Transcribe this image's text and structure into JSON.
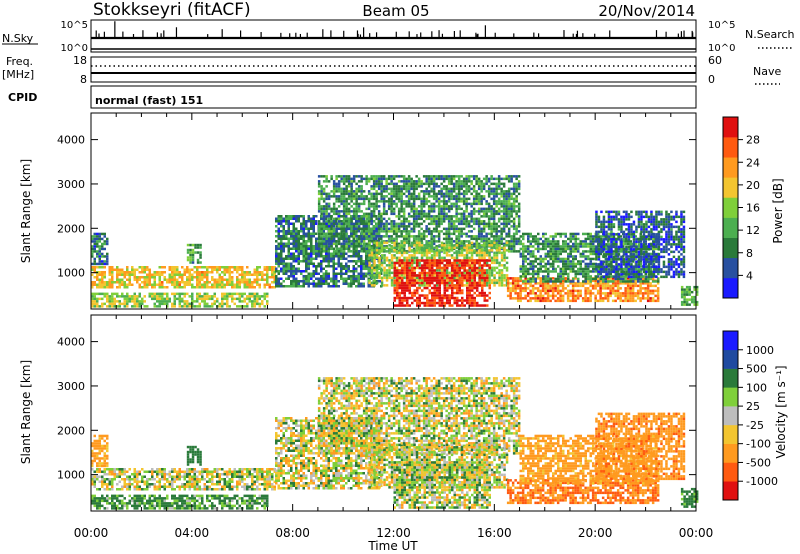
{
  "header": {
    "station": "Stokkseyri (fitACF)",
    "beam": "Beam 05",
    "date": "20/Nov/2014"
  },
  "aux_panels": {
    "nsky_label": "N.Sky",
    "nsky_ticks": [
      "10^5",
      "10^0"
    ],
    "nsearch_label": "N.Search",
    "nsearch_ticks": [
      "10^5",
      "10^0"
    ],
    "freq_label": "Freq.",
    "freq_unit": "[MHz]",
    "freq_ticks": [
      "18",
      "8"
    ],
    "nave_label": "Nave",
    "nave_ticks": [
      "60",
      "0"
    ],
    "cpid_label": "CPID",
    "cpid_value": "normal (fast) 151"
  },
  "colors": {
    "power": [
      "#1a1aff",
      "#2850a0",
      "#2a7a3a",
      "#4caf50",
      "#7fcf3a",
      "#f3c530",
      "#ff9a1f",
      "#ff5a10",
      "#e01010"
    ],
    "velocity": [
      "#e01010",
      "#ff5a10",
      "#ff9a1f",
      "#f3c530",
      "#bdbdbd",
      "#7fcf3a",
      "#2a7a3a",
      "#1f4aa0",
      "#1a1aff"
    ]
  },
  "chart_data": [
    {
      "type": "heatmap",
      "quantity": "power",
      "ylabel": "Slant Range [km]",
      "xlabel": "",
      "x_range_hours": [
        0,
        24
      ],
      "ylim": [
        180,
        4600
      ],
      "yticks": [
        "1000",
        "2000",
        "3000",
        "4000"
      ],
      "colorbar_label": "Power [dB]",
      "colorbar_ticks": [
        "28",
        "24",
        "20",
        "16",
        "12",
        "8",
        "4"
      ],
      "colorbar_range": [
        0,
        32
      ],
      "regions": [
        {
          "t0": 0.0,
          "t1": 7.3,
          "r0": 650,
          "r1": 1150,
          "level": 20
        },
        {
          "t0": 0.0,
          "t1": 7.0,
          "r0": 250,
          "r1": 550,
          "level": 16
        },
        {
          "t0": 3.8,
          "t1": 4.3,
          "r0": 1200,
          "r1": 1650,
          "level": 12
        },
        {
          "t0": 0.0,
          "t1": 0.6,
          "r0": 1200,
          "r1": 1900,
          "level": 8
        },
        {
          "t0": 7.3,
          "t1": 11.5,
          "r0": 700,
          "r1": 2300,
          "level": 8
        },
        {
          "t0": 9.0,
          "t1": 17.0,
          "r0": 1500,
          "r1": 3200,
          "level": 10
        },
        {
          "t0": 11.0,
          "t1": 16.5,
          "r0": 700,
          "r1": 1700,
          "level": 16
        },
        {
          "t0": 12.0,
          "t1": 15.8,
          "r0": 250,
          "r1": 1300,
          "level": 30
        },
        {
          "t0": 16.5,
          "t1": 22.5,
          "r0": 350,
          "r1": 900,
          "level": 24
        },
        {
          "t0": 17.0,
          "t1": 22.5,
          "r0": 800,
          "r1": 1900,
          "level": 10
        },
        {
          "t0": 20.0,
          "t1": 23.5,
          "r0": 900,
          "r1": 2400,
          "level": 6
        },
        {
          "t0": 23.4,
          "t1": 24.0,
          "r0": 250,
          "r1": 700,
          "level": 12
        }
      ]
    },
    {
      "type": "heatmap",
      "quantity": "velocity",
      "ylabel": "Slant Range [km]",
      "xlabel": "Time UT",
      "xticks": [
        "00:00",
        "04:00",
        "08:00",
        "12:00",
        "16:00",
        "20:00",
        "00:00"
      ],
      "x_range_hours": [
        0,
        24
      ],
      "ylim": [
        180,
        4600
      ],
      "yticks": [
        "1000",
        "2000",
        "3000",
        "4000"
      ],
      "colorbar_label": "Velocity [m s⁻¹]",
      "colorbar_ticks": [
        "1000",
        "500",
        "100",
        "25",
        "-25",
        "-100",
        "-500",
        "-1000"
      ],
      "regions": [
        {
          "t0": 0.0,
          "t1": 7.3,
          "r0": 650,
          "r1": 1150,
          "velocity": 0
        },
        {
          "t0": 0.0,
          "t1": 7.0,
          "r0": 250,
          "r1": 550,
          "velocity": 150
        },
        {
          "t0": 3.8,
          "t1": 4.3,
          "r0": 1200,
          "r1": 1650,
          "velocity": 300
        },
        {
          "t0": 0.0,
          "t1": 0.6,
          "r0": 1200,
          "r1": 1900,
          "velocity": -200
        },
        {
          "t0": 7.3,
          "t1": 11.5,
          "r0": 700,
          "r1": 2300,
          "velocity": 0
        },
        {
          "t0": 9.0,
          "t1": 17.0,
          "r0": 1500,
          "r1": 3200,
          "velocity": 0
        },
        {
          "t0": 11.0,
          "t1": 16.5,
          "r0": 700,
          "r1": 1700,
          "velocity": 0
        },
        {
          "t0": 12.0,
          "t1": 15.8,
          "r0": 250,
          "r1": 1300,
          "velocity": 20
        },
        {
          "t0": 16.5,
          "t1": 22.5,
          "r0": 350,
          "r1": 900,
          "velocity": -500
        },
        {
          "t0": 17.0,
          "t1": 22.5,
          "r0": 800,
          "r1": 1900,
          "velocity": -200
        },
        {
          "t0": 20.0,
          "t1": 23.5,
          "r0": 900,
          "r1": 2400,
          "velocity": -400
        },
        {
          "t0": 23.4,
          "t1": 24.0,
          "r0": 250,
          "r1": 700,
          "velocity": 200
        }
      ]
    }
  ]
}
